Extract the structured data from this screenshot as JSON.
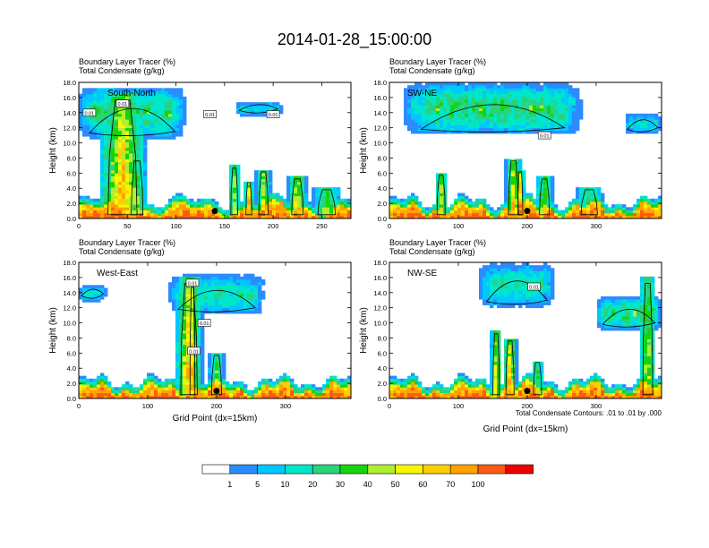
{
  "title": "2014-01-28_15:00:00",
  "colors": {
    "palette": [
      "#ffffff",
      "#2b8cff",
      "#00c8ff",
      "#00e6c8",
      "#2ad27a",
      "#15d40e",
      "#b0ee30",
      "#f7f700",
      "#ffce00",
      "#ffa200",
      "#ff5a14",
      "#f00000"
    ],
    "contour": "#000000",
    "marker": "#000000"
  },
  "chart_data": [
    {
      "type": "heatmap",
      "panel": "south-north",
      "label": "South-North",
      "field_title": "Boundary Layer Tracer   (%)",
      "contour_title": "Total Condensate   (g/kg)",
      "ylabel": "Height (km)",
      "xlabel": "",
      "xlim": [
        0,
        280
      ],
      "ylim": [
        0,
        18
      ],
      "xticks": [
        0,
        50,
        100,
        150,
        200,
        250
      ],
      "xtick_labels": [
        "0",
        "50",
        "100",
        "150",
        "200",
        "250"
      ],
      "yticks": [
        0,
        2,
        4,
        6,
        8,
        10,
        12,
        14,
        16,
        18
      ],
      "ytick_labels": [
        "0.0",
        "2.0",
        "4.0",
        "6.0",
        "8.0",
        "10.0",
        "12.0",
        "14.0",
        "16.0",
        "18.0"
      ],
      "marker": {
        "x": 140,
        "y": 1
      },
      "contour_labels": [
        {
          "x": 11,
          "y": 14,
          "text": "0.01"
        },
        {
          "x": 45,
          "y": 15.2,
          "text": "0.01"
        },
        {
          "x": 135,
          "y": 13.8,
          "text": "0.01"
        },
        {
          "x": 200,
          "y": 13.8,
          "text": "0.01"
        }
      ],
      "cloud_features": [
        {
          "x": 45,
          "top": 16.5,
          "half_width": 25,
          "peak": 75
        },
        {
          "x": 60,
          "top": 8,
          "half_width": 10,
          "peak": 45
        },
        {
          "x": 160,
          "top": 7,
          "half_width": 6,
          "peak": 55
        },
        {
          "x": 175,
          "top": 5,
          "half_width": 5,
          "peak": 80
        },
        {
          "x": 190,
          "top": 6.5,
          "half_width": 8,
          "peak": 60
        },
        {
          "x": 225,
          "top": 5.5,
          "half_width": 10,
          "peak": 70
        },
        {
          "x": 255,
          "top": 4,
          "half_width": 15,
          "peak": 45
        }
      ],
      "anvils": [
        {
          "x0": 0,
          "x1": 110,
          "bottom": 10.5,
          "top": 17.5,
          "peak": 28
        },
        {
          "x0": 160,
          "x1": 210,
          "bottom": 13.5,
          "top": 15.5,
          "peak": 12
        }
      ]
    },
    {
      "type": "heatmap",
      "panel": "sw-ne",
      "label": "SW-NE",
      "field_title": "Boundary Layer Tracer   (%)",
      "contour_title": "Total Condensate   (g/kg)",
      "ylabel": "Height (km)",
      "xlabel": "",
      "xlim": [
        0,
        395
      ],
      "ylim": [
        0,
        18
      ],
      "xticks": [
        0,
        100,
        200,
        300
      ],
      "xtick_labels": [
        "0",
        "100",
        "200",
        "300"
      ],
      "yticks": [
        0,
        2,
        4,
        6,
        8,
        10,
        12,
        14,
        16,
        18
      ],
      "ytick_labels": [
        "0.0",
        "2.0",
        "4.0",
        "6.0",
        "8.0",
        "10.0",
        "12.0",
        "14.0",
        "16.0",
        "18.0"
      ],
      "marker": {
        "x": 200,
        "y": 1
      },
      "contour_labels": [
        {
          "x": 225,
          "y": 11,
          "text": "0.01"
        }
      ],
      "cloud_features": [
        {
          "x": 75,
          "top": 6,
          "half_width": 10,
          "peak": 55
        },
        {
          "x": 180,
          "top": 8,
          "half_width": 12,
          "peak": 70
        },
        {
          "x": 190,
          "top": 6.5,
          "half_width": 6,
          "peak": 85
        },
        {
          "x": 225,
          "top": 5.5,
          "half_width": 12,
          "peak": 55
        },
        {
          "x": 290,
          "top": 4,
          "half_width": 20,
          "peak": 40
        }
      ],
      "anvils": [
        {
          "x0": 20,
          "x1": 280,
          "bottom": 11,
          "top": 18,
          "peak": 30
        },
        {
          "x0": 340,
          "x1": 395,
          "bottom": 11,
          "top": 14,
          "peak": 12
        }
      ]
    },
    {
      "type": "heatmap",
      "panel": "west-east",
      "label": "West-East",
      "field_title": "Boundary Layer Tracer   (%)",
      "contour_title": "Total Condensate   (g/kg)",
      "ylabel": "Height (km)",
      "xlabel": "Grid Point (dx=15km)",
      "xlim": [
        0,
        395
      ],
      "ylim": [
        0,
        18
      ],
      "xticks": [
        0,
        100,
        200,
        300
      ],
      "xtick_labels": [
        "0",
        "100",
        "200",
        "300"
      ],
      "yticks": [
        0,
        2,
        4,
        6,
        8,
        10,
        12,
        14,
        16,
        18
      ],
      "ytick_labels": [
        "0.0",
        "2.0",
        "4.0",
        "6.0",
        "8.0",
        "10.0",
        "12.0",
        "14.0",
        "16.0",
        "18.0"
      ],
      "marker": {
        "x": 200,
        "y": 1
      },
      "contour_labels": [
        {
          "x": 165,
          "y": 15.3,
          "text": "0.01"
        },
        {
          "x": 182,
          "y": 10,
          "text": "0.01"
        },
        {
          "x": 167,
          "y": 6.3,
          "text": "0.01"
        }
      ],
      "cloud_features": [
        {
          "x": 160,
          "top": 16,
          "half_width": 20,
          "peak": 75
        },
        {
          "x": 165,
          "top": 15.5,
          "half_width": 6,
          "peak": 95
        },
        {
          "x": 200,
          "top": 6,
          "half_width": 12,
          "peak": 45
        }
      ],
      "anvils": [
        {
          "x0": 0,
          "x1": 40,
          "bottom": 12.8,
          "top": 15,
          "peak": 12
        },
        {
          "x0": 130,
          "x1": 270,
          "bottom": 11,
          "top": 16.5,
          "peak": 20
        }
      ]
    },
    {
      "type": "heatmap",
      "panel": "nw-se",
      "label": "NW-SE",
      "field_title": "Boundary Layer Tracer   (%)",
      "contour_title": "Total Condensate   (g/kg)",
      "ylabel": "Height (km)",
      "xlabel": "Grid Point (dx=15km)",
      "xlim": [
        0,
        395
      ],
      "ylim": [
        0,
        18
      ],
      "xticks": [
        0,
        100,
        200,
        300
      ],
      "xtick_labels": [
        "0",
        "100",
        "200",
        "300"
      ],
      "yticks": [
        0,
        2,
        4,
        6,
        8,
        10,
        12,
        14,
        16,
        18
      ],
      "ytick_labels": [
        "0.0",
        "2.0",
        "4.0",
        "6.0",
        "8.0",
        "10.0",
        "12.0",
        "14.0",
        "16.0",
        "18.0"
      ],
      "marker": {
        "x": 200,
        "y": 1
      },
      "contour_labels": [
        {
          "x": 210,
          "y": 14.8,
          "text": "0.01"
        }
      ],
      "cloud_features": [
        {
          "x": 155,
          "top": 9,
          "half_width": 8,
          "peak": 70
        },
        {
          "x": 175,
          "top": 8,
          "half_width": 10,
          "peak": 80
        },
        {
          "x": 215,
          "top": 5,
          "half_width": 10,
          "peak": 40
        },
        {
          "x": 375,
          "top": 16,
          "half_width": 12,
          "peak": 55
        }
      ],
      "anvils": [
        {
          "x0": 130,
          "x1": 240,
          "bottom": 12,
          "top": 18,
          "peak": 20
        },
        {
          "x0": 300,
          "x1": 395,
          "bottom": 9,
          "top": 13.5,
          "peak": 30
        }
      ]
    }
  ],
  "colorbar": {
    "levels": [
      "1",
      "5",
      "10",
      "20",
      "30",
      "40",
      "50",
      "60",
      "70",
      "100"
    ]
  },
  "footnote": "Total Condensate Contours: .01 to .01 by .000"
}
